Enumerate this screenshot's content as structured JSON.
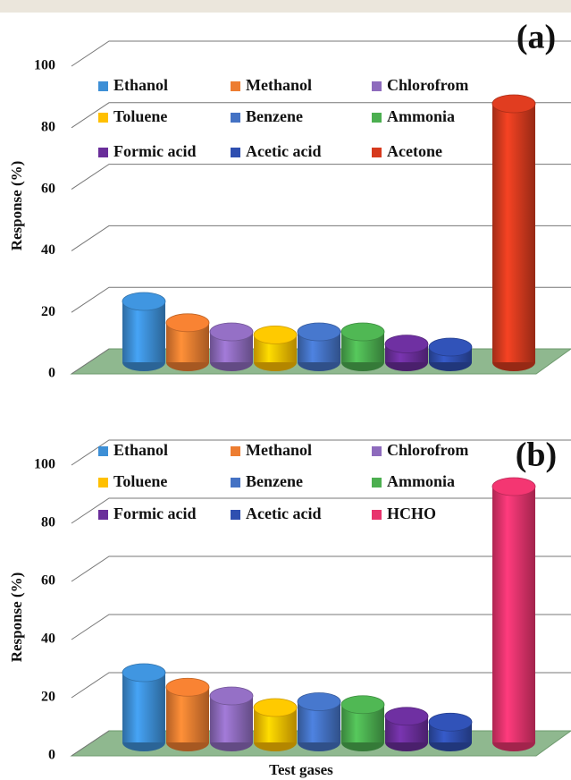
{
  "chart_data": [
    {
      "type": "bar",
      "panel_label": "(a)",
      "ylabel": "Response (%)",
      "xlabel": "Test gases",
      "ylim": [
        0,
        100
      ],
      "yticks": [
        0,
        20,
        40,
        60,
        80,
        100
      ],
      "series": [
        {
          "name": "Ethanol",
          "color": "#3d8fd6",
          "values": [
            20
          ]
        },
        {
          "name": "Methanol",
          "color": "#ed7d31",
          "values": [
            13
          ]
        },
        {
          "name": "Chlorofrom",
          "color": "#8e6bbd",
          "values": [
            10
          ]
        },
        {
          "name": "Toluene",
          "color": "#ffc000",
          "values": [
            9
          ]
        },
        {
          "name": "Benzene",
          "color": "#4472c4",
          "values": [
            10
          ]
        },
        {
          "name": "Ammonia",
          "color": "#4caf50",
          "values": [
            10
          ]
        },
        {
          "name": "Formic acid",
          "color": "#6a2e9a",
          "values": [
            6
          ]
        },
        {
          "name": "Acetic acid",
          "color": "#2f4fb0",
          "values": [
            5
          ]
        },
        {
          "name": "Acetone",
          "color": "#d63a1e",
          "values": [
            85
          ]
        }
      ]
    },
    {
      "type": "bar",
      "panel_label": "(b)",
      "ylabel": "Response (%)",
      "xlabel": "Test gases",
      "ylim": [
        0,
        100
      ],
      "yticks": [
        0,
        20,
        40,
        60,
        80,
        100
      ],
      "series": [
        {
          "name": "Ethanol",
          "color": "#3d8fd6",
          "values": [
            24
          ]
        },
        {
          "name": "Methanol",
          "color": "#ed7d31",
          "values": [
            19
          ]
        },
        {
          "name": "Chlorofrom",
          "color": "#8e6bbd",
          "values": [
            16
          ]
        },
        {
          "name": "Toluene",
          "color": "#ffc000",
          "values": [
            12
          ]
        },
        {
          "name": "Benzene",
          "color": "#4472c4",
          "values": [
            14
          ]
        },
        {
          "name": "Ammonia",
          "color": "#4caf50",
          "values": [
            13
          ]
        },
        {
          "name": "Formic acid",
          "color": "#6a2e9a",
          "values": [
            9
          ]
        },
        {
          "name": "Acetic acid",
          "color": "#2f4fb0",
          "values": [
            7
          ]
        },
        {
          "name": "HCHO",
          "color": "#e8336d",
          "values": [
            88
          ]
        }
      ]
    }
  ]
}
